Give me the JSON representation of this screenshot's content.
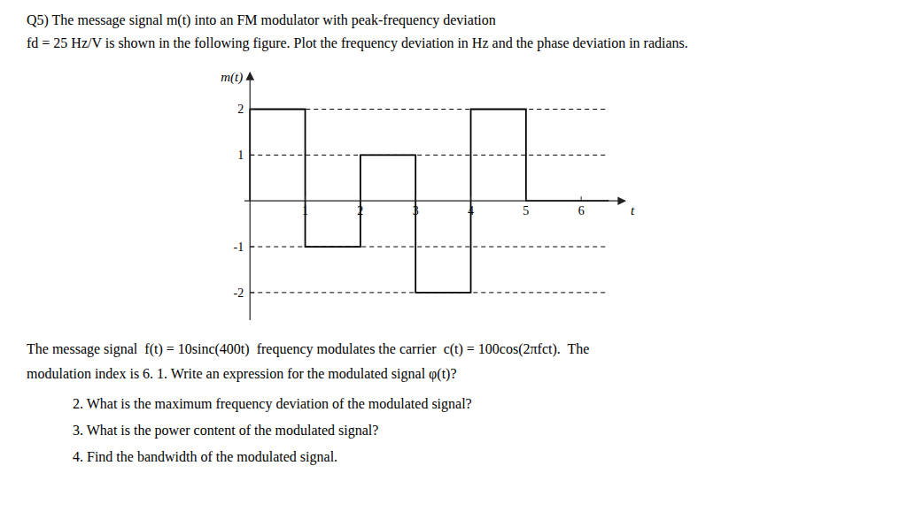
{
  "chart_data": {
    "type": "line",
    "title": "Q5) The message signal m(t) into an FM modulator with peak-frequency deviation",
    "subtitle": "fd = 25 Hz/V is shown in the following figure. Plot the frequency deviation in Hz and the phase deviation in radians.",
    "x_label": "t",
    "y_label": "m(t)",
    "xlim": [
      -0.1,
      6.8
    ],
    "ylim": [
      -2.6,
      2.8
    ],
    "xticks": [
      1,
      2,
      3,
      4,
      5,
      6
    ],
    "yticks": [
      -2,
      -1,
      1,
      2
    ],
    "grid": false,
    "series": [
      {
        "color": "#000000",
        "line_style": "solid",
        "x": [
          0,
          0,
          1,
          1,
          2,
          2,
          3,
          3,
          4,
          4,
          5,
          5,
          6.5
        ],
        "values": [
          0,
          2,
          2,
          -1,
          -1,
          1,
          1,
          -2,
          -2,
          2,
          2,
          0,
          0
        ]
      },
      {
        "color": "#000000",
        "line_style": "dashed",
        "x": [
          0,
          6.5
        ],
        "values": [
          2,
          2
        ]
      },
      {
        "color": "#000000",
        "line_style": "dashed",
        "x": [
          0,
          6.5
        ],
        "values": [
          1,
          1
        ]
      },
      {
        "color": "#000000",
        "line_style": "dashed",
        "x": [
          0,
          6.5
        ],
        "values": [
          -1,
          -1
        ]
      },
      {
        "color": "#000000",
        "line_style": "dashed",
        "x": [
          0,
          6.5
        ],
        "values": [
          -2,
          -2
        ]
      }
    ],
    "annotations": [
      "The message signal  f(t) = 10sinc(400t)  frequency modulates the carrier  c(t) = 100cos(2πfct).  The",
      "modulation index is 6. 1. Write an expression for the modulated signal φ(t)?",
      "2. What is the maximum frequency deviation of the modulated signal?",
      "3. What is the power content of the modulated signal?",
      "4. Find the bandwidth of the modulated signal."
    ]
  }
}
